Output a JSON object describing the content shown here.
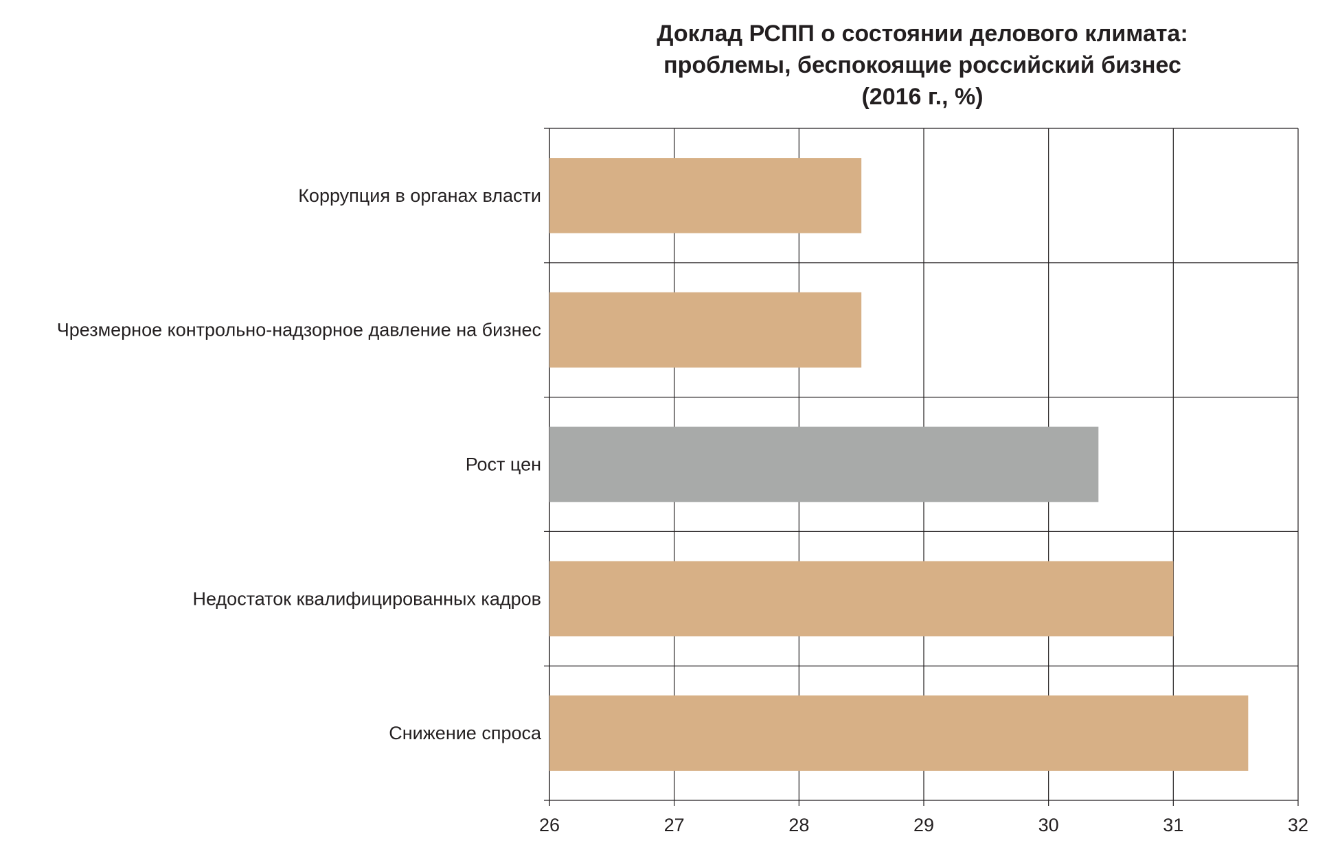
{
  "chart_data": {
    "type": "bar",
    "orientation": "horizontal",
    "title_lines": [
      "Доклад РСПП о состоянии делового климата:",
      "проблемы, беспокоящие российский бизнес",
      "(2016 г., %)"
    ],
    "categories": [
      "Коррупция в органах власти",
      "Чрезмерное контрольно-надзорное давление на бизнес",
      "Рост цен",
      "Недостаток квалифицированных кадров",
      "Снижение спроса"
    ],
    "values": [
      28.5,
      28.5,
      30.4,
      31.0,
      31.6
    ],
    "colors": [
      "#d7b086",
      "#d7b086",
      "#a8aaa9",
      "#d7b086",
      "#d7b086"
    ],
    "xlim": [
      26,
      32
    ],
    "xticks": [
      "26",
      "27",
      "28",
      "29",
      "30",
      "31",
      "32"
    ],
    "xlabel": "",
    "ylabel": "",
    "grid": true,
    "legend": "none"
  }
}
